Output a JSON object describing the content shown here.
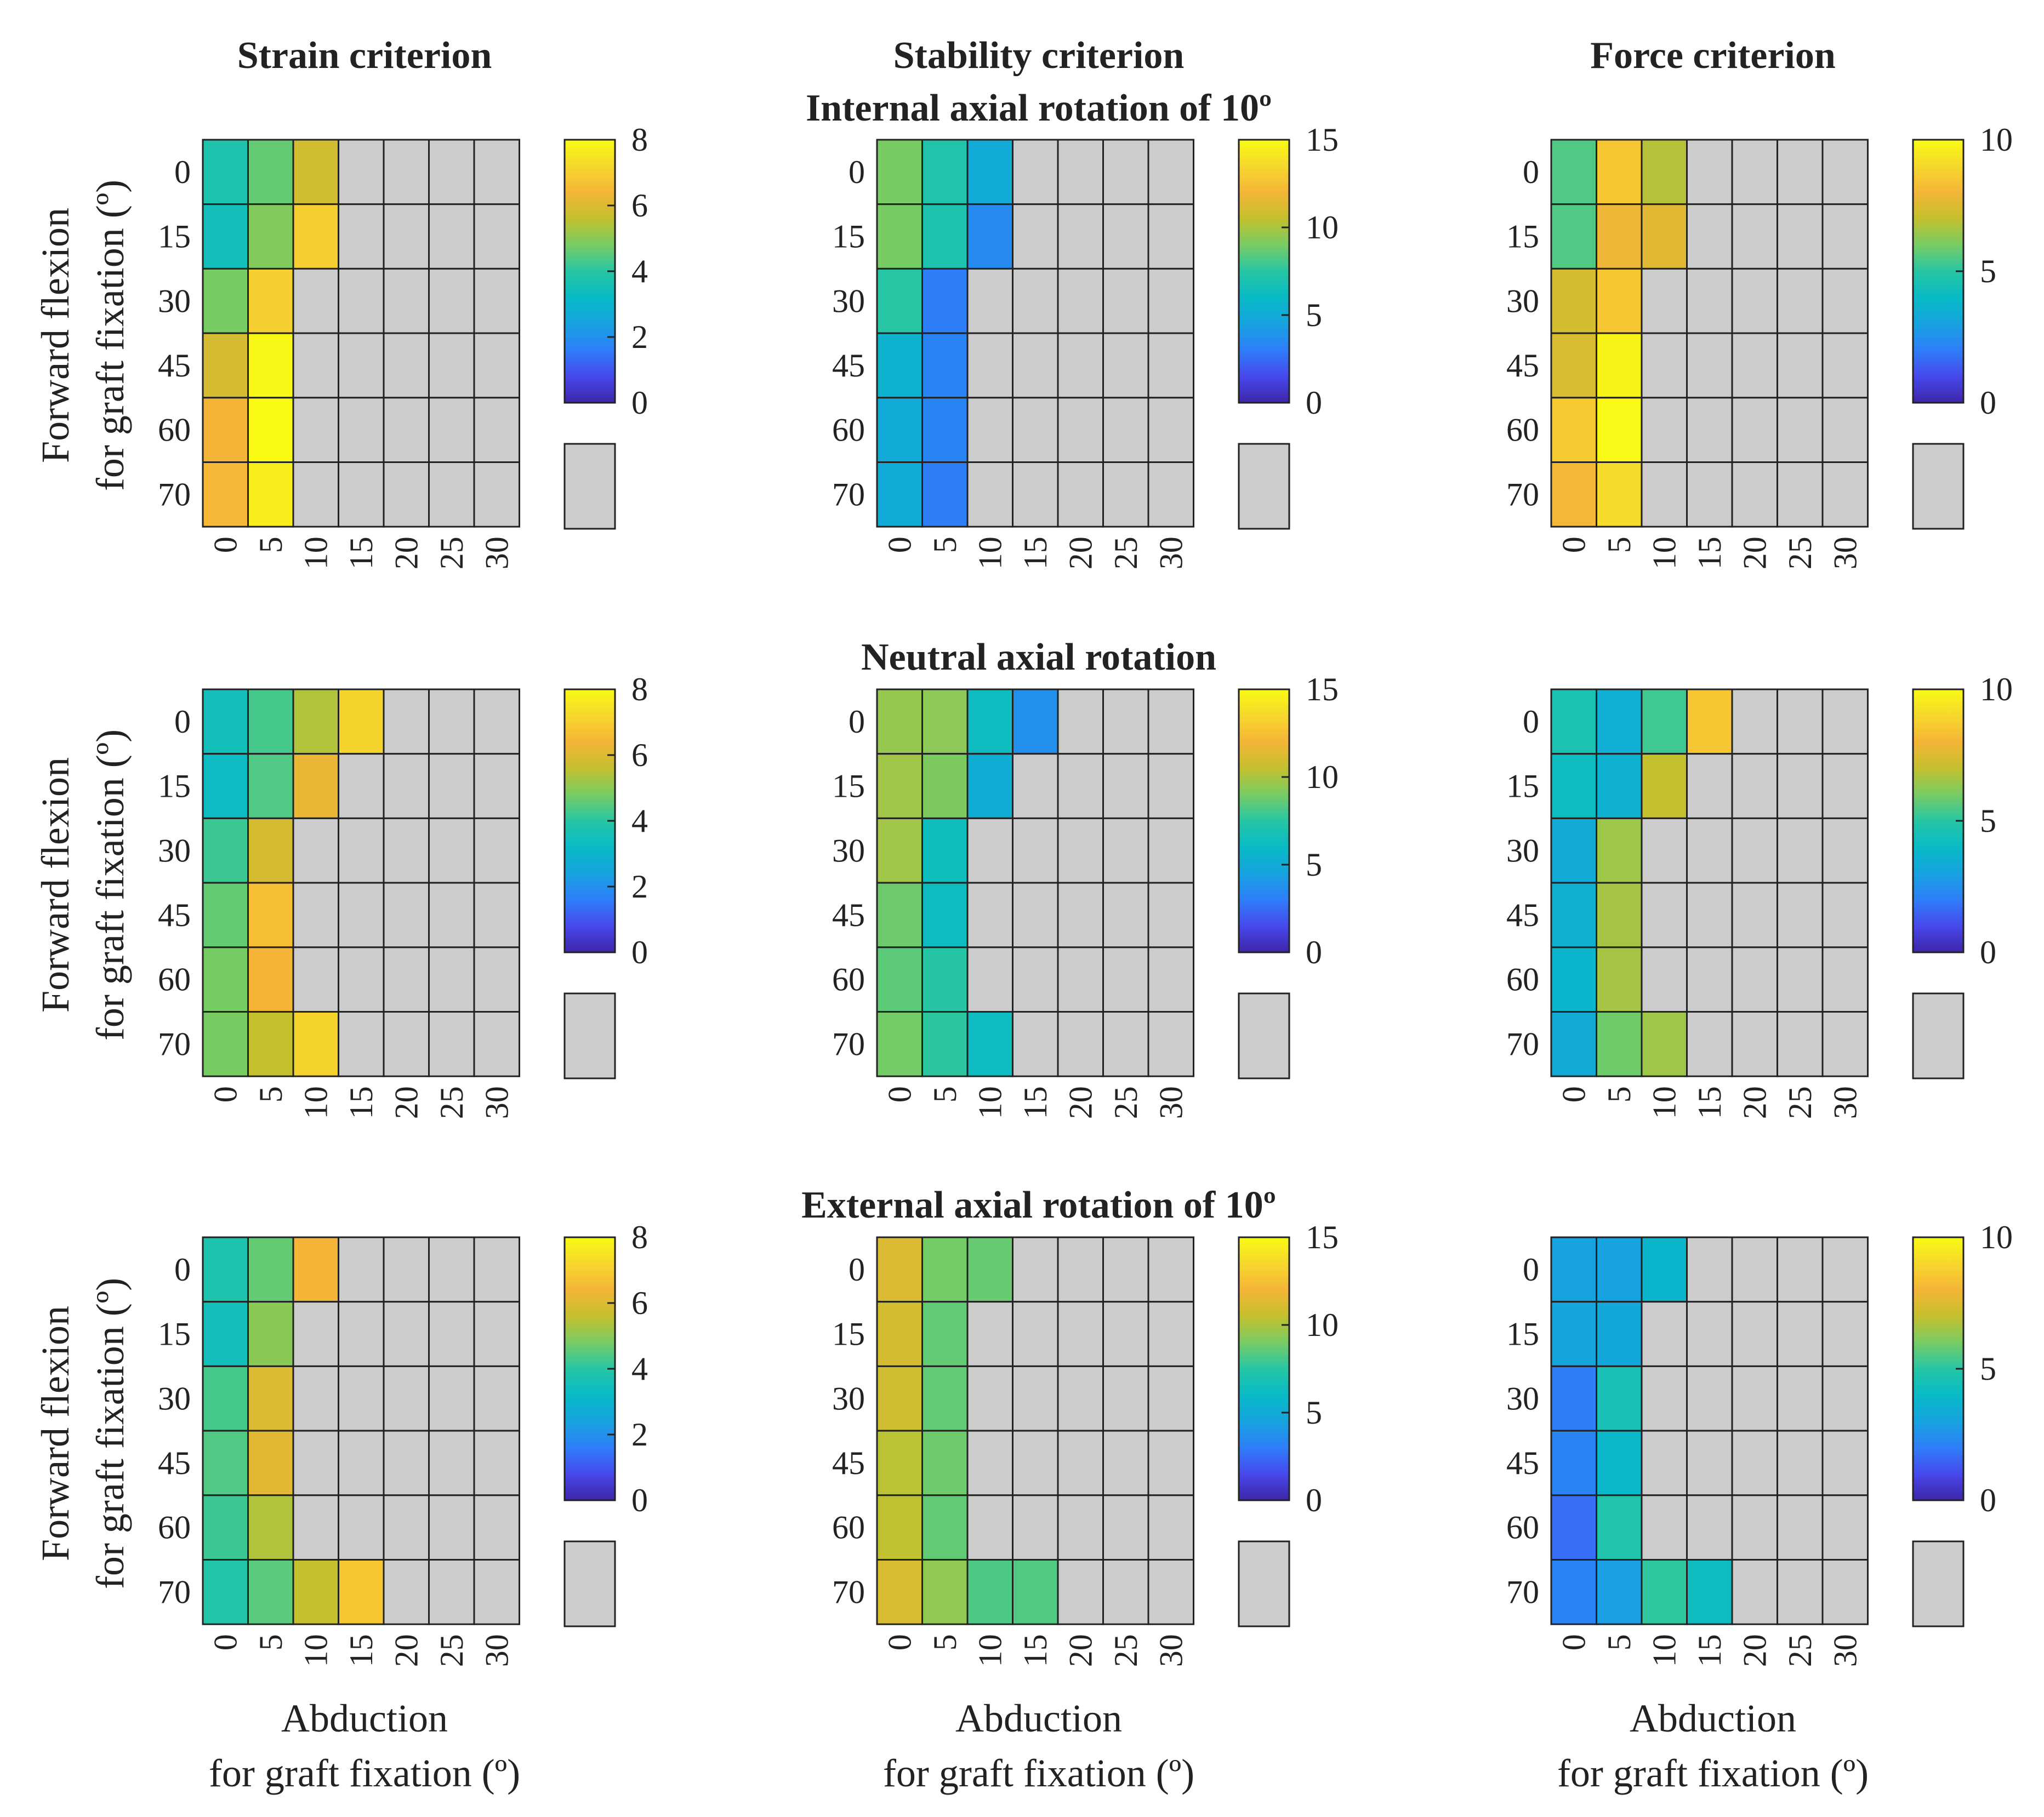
{
  "figure": {
    "column_titles": [
      "Strain criterion",
      "Stability criterion",
      "Force criterion"
    ],
    "row_titles": [
      "Internal axial rotation of 10º",
      "Neutral axial rotation",
      "External axial rotation of 10º"
    ],
    "ylabel_lines": [
      "Forward flexion",
      "for graft fixation (º)"
    ],
    "xlabel_lines": [
      "Abduction",
      "for graft fixation (º)"
    ],
    "colorbar_ranges": [
      [
        0,
        8
      ],
      [
        0,
        15
      ],
      [
        0,
        10
      ]
    ],
    "colorbar_ticks": [
      [
        "0",
        "2",
        "4",
        "6",
        "8"
      ],
      [
        "0",
        "5",
        "10",
        "15"
      ],
      [
        "0",
        "5",
        "10"
      ]
    ],
    "missing_color": "#cccccc",
    "grid_color": "#222222"
  },
  "chart_data": [
    {
      "type": "heatmap",
      "criterion": "Strain criterion",
      "rotation": "Internal axial rotation of 10º",
      "categories_x": [
        "0",
        "5",
        "10",
        "15",
        "20",
        "25",
        "30"
      ],
      "categories_y": [
        "0",
        "15",
        "30",
        "45",
        "60",
        "70"
      ],
      "xlabel": "Abduction for graft fixation (º)",
      "ylabel": "Forward flexion for graft fixation (º)",
      "clim": [
        0,
        8
      ],
      "values": [
        [
          3.8,
          4.6,
          5.8,
          null,
          null,
          null,
          null
        ],
        [
          3.5,
          4.9,
          7.0,
          null,
          null,
          null,
          null
        ],
        [
          4.8,
          7.0,
          null,
          null,
          null,
          null,
          null
        ],
        [
          5.9,
          7.9,
          null,
          null,
          null,
          null,
          null
        ],
        [
          6.4,
          8.0,
          null,
          null,
          null,
          null,
          null
        ],
        [
          6.5,
          7.7,
          null,
          null,
          null,
          null,
          null
        ]
      ]
    },
    {
      "type": "heatmap",
      "criterion": "Stability criterion",
      "rotation": "Internal axial rotation of 10º",
      "categories_x": [
        "0",
        "5",
        "10",
        "15",
        "20",
        "25",
        "30"
      ],
      "categories_y": [
        "0",
        "15",
        "30",
        "45",
        "60",
        "70"
      ],
      "xlabel": "",
      "ylabel": "",
      "clim": [
        0,
        15
      ],
      "values": [
        [
          9.0,
          7.2,
          5.0,
          null,
          null,
          null,
          null
        ],
        [
          9.0,
          7.0,
          3.5,
          null,
          null,
          null,
          null
        ],
        [
          7.5,
          3.0,
          null,
          null,
          null,
          null,
          null
        ],
        [
          5.5,
          3.3,
          null,
          null,
          null,
          null,
          null
        ],
        [
          5.0,
          3.3,
          null,
          null,
          null,
          null,
          null
        ],
        [
          5.0,
          3.0,
          null,
          null,
          null,
          null,
          null
        ]
      ]
    },
    {
      "type": "heatmap",
      "criterion": "Force criterion",
      "rotation": "Internal axial rotation of 10º",
      "categories_x": [
        "0",
        "5",
        "10",
        "15",
        "20",
        "25",
        "30"
      ],
      "categories_y": [
        "0",
        "15",
        "30",
        "45",
        "60",
        "70"
      ],
      "xlabel": "",
      "ylabel": "",
      "clim": [
        0,
        10
      ],
      "values": [
        [
          5.5,
          8.5,
          6.8,
          null,
          null,
          null,
          null
        ],
        [
          5.5,
          7.9,
          7.6,
          null,
          null,
          null,
          null
        ],
        [
          7.3,
          8.5,
          null,
          null,
          null,
          null,
          null
        ],
        [
          7.4,
          9.8,
          null,
          null,
          null,
          null,
          null
        ],
        [
          8.6,
          9.9,
          null,
          null,
          null,
          null,
          null
        ],
        [
          8.1,
          9.1,
          null,
          null,
          null,
          null,
          null
        ]
      ]
    },
    {
      "type": "heatmap",
      "criterion": "Strain criterion",
      "rotation": "Neutral axial rotation",
      "categories_x": [
        "0",
        "5",
        "10",
        "15",
        "20",
        "25",
        "30"
      ],
      "categories_y": [
        "0",
        "15",
        "30",
        "45",
        "60",
        "70"
      ],
      "xlabel": "Abduction for graft fixation (º)",
      "ylabel": "Forward flexion for graft fixation (º)",
      "clim": [
        0,
        8
      ],
      "values": [
        [
          3.5,
          4.3,
          5.4,
          7.1,
          null,
          null,
          null
        ],
        [
          3.3,
          4.4,
          6.2,
          null,
          null,
          null,
          null
        ],
        [
          4.2,
          5.9,
          null,
          null,
          null,
          null,
          null
        ],
        [
          4.6,
          6.6,
          null,
          null,
          null,
          null,
          null
        ],
        [
          4.8,
          6.4,
          null,
          null,
          null,
          null,
          null
        ],
        [
          4.8,
          5.6,
          7.1,
          null,
          null,
          null,
          null
        ]
      ]
    },
    {
      "type": "heatmap",
      "criterion": "Stability criterion",
      "rotation": "Neutral axial rotation",
      "categories_x": [
        "0",
        "5",
        "10",
        "15",
        "20",
        "25",
        "30"
      ],
      "categories_y": [
        "0",
        "15",
        "30",
        "45",
        "60",
        "70"
      ],
      "xlabel": "",
      "ylabel": "",
      "clim": [
        0,
        15
      ],
      "values": [
        [
          9.6,
          9.4,
          6.3,
          3.7,
          null,
          null,
          null
        ],
        [
          9.8,
          9.1,
          5.1,
          null,
          null,
          null,
          null
        ],
        [
          9.8,
          6.4,
          null,
          null,
          null,
          null,
          null
        ],
        [
          8.8,
          6.3,
          null,
          null,
          null,
          null,
          null
        ],
        [
          8.5,
          7.4,
          null,
          null,
          null,
          null,
          null
        ],
        [
          8.9,
          7.6,
          6.3,
          null,
          null,
          null,
          null
        ]
      ]
    },
    {
      "type": "heatmap",
      "criterion": "Force criterion",
      "rotation": "Neutral axial rotation",
      "categories_x": [
        "0",
        "5",
        "10",
        "15",
        "20",
        "25",
        "30"
      ],
      "categories_y": [
        "0",
        "15",
        "30",
        "45",
        "60",
        "70"
      ],
      "xlabel": "",
      "ylabel": "",
      "clim": [
        0,
        10
      ],
      "values": [
        [
          4.6,
          3.5,
          5.3,
          8.5,
          null,
          null,
          null
        ],
        [
          4.2,
          3.6,
          7.0,
          null,
          null,
          null,
          null
        ],
        [
          3.3,
          6.5,
          null,
          null,
          null,
          null,
          null
        ],
        [
          3.6,
          6.6,
          null,
          null,
          null,
          null,
          null
        ],
        [
          3.8,
          6.6,
          null,
          null,
          null,
          null,
          null
        ],
        [
          3.3,
          5.9,
          6.5,
          null,
          null,
          null,
          null
        ]
      ]
    },
    {
      "type": "heatmap",
      "criterion": "Strain criterion",
      "rotation": "External axial rotation of 10º",
      "categories_x": [
        "0",
        "5",
        "10",
        "15",
        "20",
        "25",
        "30"
      ],
      "categories_y": [
        "0",
        "15",
        "30",
        "45",
        "60",
        "70"
      ],
      "xlabel": "Abduction for graft fixation (º)",
      "ylabel": "Forward flexion for graft fixation (º)",
      "clim": [
        0,
        8
      ],
      "values": [
        [
          3.8,
          4.6,
          6.4,
          null,
          null,
          null,
          null
        ],
        [
          3.5,
          5.0,
          null,
          null,
          null,
          null,
          null
        ],
        [
          4.3,
          6.0,
          null,
          null,
          null,
          null,
          null
        ],
        [
          4.4,
          6.1,
          null,
          null,
          null,
          null,
          null
        ],
        [
          4.2,
          5.4,
          null,
          null,
          null,
          null,
          null
        ],
        [
          3.9,
          4.5,
          5.6,
          6.8,
          null,
          null,
          null
        ]
      ]
    },
    {
      "type": "heatmap",
      "criterion": "Stability criterion",
      "rotation": "External axial rotation of 10º",
      "categories_x": [
        "0",
        "5",
        "10",
        "15",
        "20",
        "25",
        "30"
      ],
      "categories_y": [
        "0",
        "15",
        "30",
        "45",
        "60",
        "70"
      ],
      "xlabel": "",
      "ylabel": "",
      "clim": [
        0,
        15
      ],
      "values": [
        [
          11.2,
          8.9,
          8.7,
          null,
          null,
          null,
          null
        ],
        [
          11.0,
          8.6,
          null,
          null,
          null,
          null,
          null
        ],
        [
          10.9,
          8.6,
          null,
          null,
          null,
          null,
          null
        ],
        [
          10.3,
          8.8,
          null,
          null,
          null,
          null,
          null
        ],
        [
          10.4,
          8.6,
          null,
          null,
          null,
          null,
          null
        ],
        [
          11.1,
          9.5,
          8.2,
          8.3,
          null,
          null,
          null
        ]
      ]
    },
    {
      "type": "heatmap",
      "criterion": "Force criterion",
      "rotation": "External axial rotation of 10º",
      "categories_x": [
        "0",
        "5",
        "10",
        "15",
        "20",
        "25",
        "30"
      ],
      "categories_y": [
        "0",
        "15",
        "30",
        "45",
        "60",
        "70"
      ],
      "xlabel": "",
      "ylabel": "",
      "clim": [
        0,
        10
      ],
      "values": [
        [
          3.0,
          3.0,
          3.8,
          null,
          null,
          null,
          null
        ],
        [
          3.1,
          3.2,
          null,
          null,
          null,
          null,
          null
        ],
        [
          2.0,
          4.5,
          null,
          null,
          null,
          null,
          null
        ],
        [
          2.2,
          3.9,
          null,
          null,
          null,
          null,
          null
        ],
        [
          1.7,
          4.8,
          null,
          null,
          null,
          null,
          null
        ],
        [
          2.2,
          2.9,
          5.1,
          4.2,
          null,
          null,
          null
        ]
      ]
    }
  ]
}
